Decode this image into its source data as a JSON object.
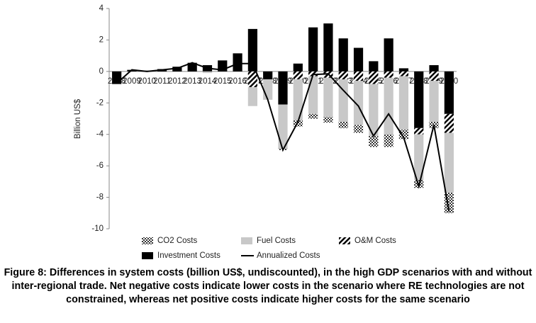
{
  "chart_data": {
    "type": "bar",
    "stacked": true,
    "ylabel": "Billion US$",
    "categories": [
      "2008",
      "2009",
      "2010",
      "2011",
      "2012",
      "2013",
      "2014",
      "2015",
      "2016",
      "2017",
      "2018",
      "2019",
      "2020",
      "2021",
      "2022",
      "2023",
      "2024",
      "2025",
      "2026",
      "2027",
      "2028",
      "2029",
      "2030"
    ],
    "ylim": [
      -10,
      4
    ],
    "yticks": [
      -10,
      -8,
      -6,
      -4,
      -2,
      0,
      2,
      4
    ],
    "grid": false,
    "legend": "bottom",
    "series": [
      {
        "name": "CO2 Costs",
        "type": "bar",
        "color": "#555555",
        "pattern": "checker",
        "values": [
          0,
          0,
          0,
          0,
          0,
          0,
          0,
          0,
          0,
          0,
          0,
          -0.1,
          -0.4,
          -0.3,
          -0.35,
          -0.4,
          -0.5,
          -0.7,
          -0.8,
          -0.6,
          -0.5,
          -0.4,
          -1.3
        ]
      },
      {
        "name": "Fuel Costs",
        "type": "bar",
        "color": "#c8c8c8",
        "values": [
          0,
          0,
          0,
          0,
          0,
          0,
          -0.1,
          0,
          0,
          -1.2,
          -1.3,
          -2.8,
          -2.6,
          -2.4,
          -2.5,
          -2.7,
          -2.8,
          -3.3,
          -3.6,
          -3.4,
          -2.9,
          -2.6,
          -3.8
        ]
      },
      {
        "name": "O&M Costs",
        "type": "bar",
        "color": "#000000",
        "pattern": "diagonal",
        "values": [
          0,
          0,
          0,
          0,
          0,
          0,
          0,
          0,
          0,
          -1.0,
          0,
          0,
          -0.5,
          -0.3,
          -0.4,
          -0.5,
          -0.6,
          -0.8,
          -0.4,
          -0.3,
          -0.4,
          -0.6,
          -1.2
        ]
      },
      {
        "name": "Investment Costs",
        "type": "bar",
        "color": "#000000",
        "values": [
          -0.8,
          0.1,
          0.05,
          0.15,
          0.3,
          0.55,
          0.4,
          0.7,
          1.15,
          2.7,
          -0.5,
          -2.1,
          0.5,
          2.8,
          3.05,
          2.1,
          1.5,
          0.65,
          2.1,
          0.2,
          -3.6,
          0.4,
          -2.7
        ]
      },
      {
        "name": "Annualized Costs",
        "type": "line",
        "color": "#000000",
        "values": [
          -0.75,
          0.1,
          0,
          0.1,
          0.2,
          0.55,
          0.2,
          0.1,
          0.5,
          0.5,
          -1.8,
          -5.0,
          -3.2,
          -0.2,
          -0.15,
          -1.2,
          -2.2,
          -4.1,
          -2.7,
          -4.2,
          -7.3,
          -3.4,
          -8.9
        ]
      }
    ]
  },
  "caption": "Figure 8: Differences in system costs (billion US$, undiscounted), in the high GDP scenarios with and without inter-regional trade. Net negative costs indicate lower costs in the scenario where RE technologies are not constrained, whereas net positive costs indicate higher costs for the same scenario"
}
